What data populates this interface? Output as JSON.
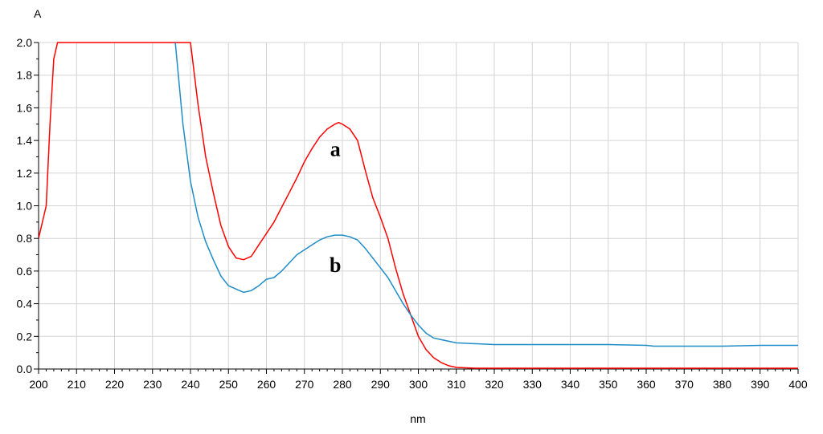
{
  "chart_data": {
    "type": "line",
    "xlabel": "nm",
    "ylabel": "A",
    "xlim": [
      200,
      400
    ],
    "ylim": [
      0,
      2.0
    ],
    "x_ticks": [
      "200",
      "210",
      "220",
      "230",
      "240",
      "250",
      "260",
      "270",
      "280",
      "290",
      "300",
      "310",
      "320",
      "330",
      "340",
      "350",
      "360",
      "370",
      "380",
      "390",
      "400"
    ],
    "y_ticks": [
      "0.0",
      "0.2",
      "0.4",
      "0.6",
      "0.8",
      "1.0",
      "1.2",
      "1.4",
      "1.6",
      "1.8",
      "2.0"
    ],
    "grid": true,
    "colors": {
      "a": "#ff0000",
      "b": "#1e8cc8"
    },
    "series": [
      {
        "name": "a",
        "x": [
          200,
          202,
          203,
          204,
          205,
          240,
          242,
          244,
          246,
          248,
          250,
          252,
          254,
          256,
          258,
          260,
          262,
          264,
          266,
          268,
          270,
          272,
          274,
          276,
          278,
          279,
          280,
          282,
          284,
          286,
          288,
          290,
          292,
          294,
          296,
          298,
          300,
          302,
          304,
          306,
          308,
          310,
          315,
          320,
          330,
          340,
          350,
          360,
          370,
          380,
          390,
          400
        ],
        "y": [
          0.8,
          1.0,
          1.5,
          1.9,
          2.0,
          2.0,
          1.62,
          1.3,
          1.08,
          0.88,
          0.75,
          0.68,
          0.67,
          0.69,
          0.76,
          0.83,
          0.9,
          0.99,
          1.08,
          1.17,
          1.27,
          1.35,
          1.42,
          1.47,
          1.5,
          1.51,
          1.5,
          1.47,
          1.4,
          1.22,
          1.05,
          0.93,
          0.8,
          0.62,
          0.46,
          0.33,
          0.2,
          0.12,
          0.07,
          0.04,
          0.02,
          0.01,
          0.005,
          0.005,
          0.005,
          0.005,
          0.005,
          0.005,
          0.005,
          0.005,
          0.005,
          0.005
        ]
      },
      {
        "name": "b",
        "x": [
          236,
          238,
          240,
          242,
          244,
          246,
          248,
          250,
          252,
          254,
          256,
          258,
          260,
          262,
          264,
          266,
          268,
          270,
          272,
          274,
          276,
          278,
          280,
          282,
          284,
          286,
          288,
          290,
          292,
          294,
          296,
          298,
          300,
          302,
          304,
          306,
          310,
          320,
          330,
          340,
          350,
          360,
          362,
          370,
          380,
          390,
          400
        ],
        "y": [
          2.0,
          1.5,
          1.15,
          0.93,
          0.78,
          0.67,
          0.57,
          0.51,
          0.49,
          0.47,
          0.48,
          0.51,
          0.55,
          0.56,
          0.6,
          0.65,
          0.7,
          0.73,
          0.76,
          0.79,
          0.81,
          0.82,
          0.82,
          0.81,
          0.79,
          0.74,
          0.68,
          0.62,
          0.56,
          0.48,
          0.4,
          0.33,
          0.27,
          0.22,
          0.19,
          0.18,
          0.16,
          0.15,
          0.15,
          0.15,
          0.15,
          0.145,
          0.14,
          0.14,
          0.14,
          0.145,
          0.145
        ]
      }
    ],
    "annotations": [
      {
        "text": "a",
        "x": 279,
        "y": 1.35
      },
      {
        "text": "b",
        "x": 279,
        "y": 0.64
      }
    ]
  }
}
